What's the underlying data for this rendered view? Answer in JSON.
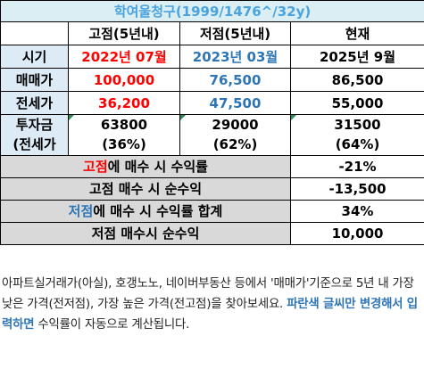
{
  "title": "학여울청구(1999/1476^/32y)",
  "headers": {
    "high": "고점(5년내)",
    "low": "저점(5년내)",
    "now": "현재"
  },
  "rows": {
    "period": {
      "label": "시기",
      "high": "2022년 07월",
      "low": "2023년 03월",
      "now": "2025년 9월"
    },
    "sale": {
      "label": "매매가",
      "high": "100,000",
      "low": "76,500",
      "now": "86,500"
    },
    "jeonse": {
      "label": "전세가",
      "high": "36,200",
      "low": "47,500",
      "now": "55,000"
    },
    "invest": {
      "label1": "투자금",
      "label2": "(전세가",
      "high1": "63800",
      "high2": "(36%)",
      "low1": "29000",
      "low2": "(62%)",
      "now1": "31500",
      "now2": "(64%)"
    }
  },
  "summary": {
    "high_rate": {
      "prefix": "고점",
      "suffix": "에 매수 시 수익률",
      "value": "-21%"
    },
    "high_profit": {
      "label": "고점 매수 시 순수익",
      "value": "-13,500"
    },
    "low_rate": {
      "prefix": "저점",
      "suffix": "에 매수 시 수익률 합계",
      "value": "34%"
    },
    "low_profit": {
      "label": "저점 매수시 순수익",
      "value": "10,000"
    }
  },
  "note": {
    "text_before": "아파트실거래가(아실), 호갱노노, 네이버부동산 등에서 '매매가'기준으로 5년 내 가장 낮은 가격(전저점), 가장 높은 가격(전고점)을 찾아보세요. ",
    "highlight": "파란색 글씨만 변경해서 입력하면",
    "text_after": " 수익률이 자동으로 계산됩니다."
  },
  "colors": {
    "title_bg": "#daeef3",
    "title_text": "#4aa3df",
    "label_bg": "#ddebf7",
    "summary_bg": "#d9d9d9",
    "red": "#ff0000",
    "blue": "#2e75b6"
  }
}
